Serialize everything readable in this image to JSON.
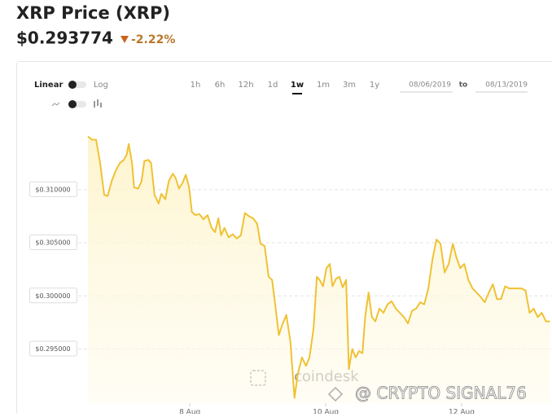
{
  "header": {
    "title": "XRP Price (XRP)",
    "price": "$0.293774",
    "change": "-2.22%"
  },
  "controls": {
    "scale_options": [
      "Linear",
      "Log"
    ],
    "ranges": [
      "1h",
      "6h",
      "12h",
      "1d",
      "1w",
      "1m",
      "3m",
      "1y"
    ],
    "selected_range": "1w",
    "date_from": "08/06/2019",
    "date_separator": "to",
    "date_to": "08/13/2019"
  },
  "watermarks": [
    "coindesk",
    "@ CRYPTO SIGNAL76"
  ],
  "chart_data": {
    "type": "line",
    "grid": true,
    "fill": true,
    "x": [
      6.5,
      6.56,
      6.62,
      6.68,
      6.74,
      6.79,
      6.85,
      6.91,
      6.97,
      7.03,
      7.07,
      7.1,
      7.15,
      7.18,
      7.24,
      7.29,
      7.33,
      7.39,
      7.43,
      7.48,
      7.54,
      7.58,
      7.64,
      7.69,
      7.75,
      7.79,
      7.84,
      7.89,
      7.94,
      7.99,
      8.03,
      8.08,
      8.14,
      8.2,
      8.26,
      8.32,
      8.37,
      8.42,
      8.46,
      8.51,
      8.57,
      8.63,
      8.69,
      8.75,
      8.81,
      8.87,
      8.93,
      8.99,
      9.04,
      9.1,
      9.16,
      9.21,
      9.25,
      9.31,
      9.36,
      9.42,
      9.48,
      9.54,
      9.59,
      9.65,
      9.71,
      9.76,
      9.82,
      9.87,
      9.91,
      9.96,
      10.01,
      10.06,
      10.1,
      10.15,
      10.2,
      10.25,
      10.3,
      10.34,
      10.39,
      10.44,
      10.49,
      10.54,
      10.58,
      10.63,
      10.68,
      10.73,
      10.79,
      10.85,
      10.91,
      10.97,
      11.03,
      11.09,
      11.15,
      11.21,
      11.27,
      11.33,
      11.39,
      11.45,
      11.51,
      11.57,
      11.63,
      11.69,
      11.75,
      11.81,
      11.87,
      11.92,
      11.98,
      12.04,
      12.1,
      12.16,
      12.22,
      12.28,
      12.34,
      12.4,
      12.46,
      12.52,
      12.58,
      12.64,
      12.7,
      12.76,
      12.82,
      12.88,
      12.94,
      13.0,
      13.06,
      13.12,
      13.18,
      13.24,
      13.3
    ],
    "series": [
      {
        "color": "#efc233",
        "values": [
          0.315,
          0.3147,
          0.3147,
          0.3125,
          0.3095,
          0.3094,
          0.3108,
          0.3118,
          0.3125,
          0.3128,
          0.3133,
          0.3143,
          0.3125,
          0.3102,
          0.3101,
          0.3108,
          0.3127,
          0.3128,
          0.3125,
          0.3095,
          0.3087,
          0.3096,
          0.3091,
          0.3108,
          0.3115,
          0.3111,
          0.3101,
          0.3106,
          0.3114,
          0.3102,
          0.3079,
          0.3076,
          0.3077,
          0.3072,
          0.3076,
          0.3064,
          0.306,
          0.3073,
          0.3057,
          0.3064,
          0.3055,
          0.3058,
          0.3054,
          0.3057,
          0.3078,
          0.3075,
          0.3073,
          0.3068,
          0.3049,
          0.3047,
          0.3018,
          0.3015,
          0.2995,
          0.2963,
          0.2973,
          0.2982,
          0.2957,
          0.2904,
          0.2927,
          0.2942,
          0.2934,
          0.2942,
          0.2969,
          0.3018,
          0.3015,
          0.3009,
          0.3026,
          0.303,
          0.3009,
          0.3016,
          0.3018,
          0.3008,
          0.3015,
          0.2931,
          0.295,
          0.2942,
          0.2948,
          0.2946,
          0.298,
          0.3003,
          0.298,
          0.2976,
          0.2988,
          0.2984,
          0.2992,
          0.2995,
          0.2988,
          0.2984,
          0.298,
          0.2974,
          0.2986,
          0.2988,
          0.2994,
          0.2992,
          0.3007,
          0.3034,
          0.3053,
          0.3049,
          0.3022,
          0.303,
          0.3049,
          0.3037,
          0.3026,
          0.303,
          0.3015,
          0.3007,
          0.3003,
          0.2999,
          0.2994,
          0.3003,
          0.3011,
          0.2997,
          0.2997,
          0.3009,
          0.3007,
          0.3007,
          0.3007,
          0.3007,
          0.3005,
          0.2984,
          0.2988,
          0.298,
          0.2984,
          0.2976,
          0.2976
        ]
      }
    ],
    "xlim": [
      6.5,
      13.33
    ],
    "xticks": [
      {
        "value": 8,
        "label": "8 Aug"
      },
      {
        "value": 10,
        "label": "10 Aug"
      },
      {
        "value": 12,
        "label": "12 Aug"
      }
    ],
    "ylim": [
      0.2899,
      0.3152
    ],
    "yticks": [
      {
        "value": 0.295,
        "label": "$0.295000"
      },
      {
        "value": 0.3,
        "label": "$0.300000"
      },
      {
        "value": 0.305,
        "label": "$0.305000"
      },
      {
        "value": 0.31,
        "label": "$0.310000"
      }
    ]
  }
}
